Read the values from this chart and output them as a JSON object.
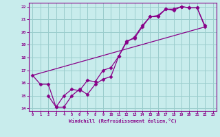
{
  "xlabel": "Windchill (Refroidissement éolien,°C)",
  "xlim": [
    -0.5,
    23.5
  ],
  "ylim": [
    13.8,
    22.3
  ],
  "xticks": [
    0,
    1,
    2,
    3,
    4,
    5,
    6,
    7,
    8,
    9,
    10,
    11,
    12,
    13,
    14,
    15,
    16,
    17,
    18,
    19,
    20,
    21,
    22,
    23
  ],
  "yticks": [
    14,
    15,
    16,
    17,
    18,
    19,
    20,
    21,
    22
  ],
  "bg_color": "#c8ecec",
  "plot_bg": "#c8ecec",
  "line_color": "#880088",
  "grid_color": "#99cccc",
  "spine_color": "#880088",
  "line1_x": [
    0,
    1,
    2,
    3,
    4,
    5,
    6,
    7,
    8,
    9,
    10,
    11,
    12,
    13,
    14,
    15,
    16,
    17,
    18,
    19,
    20,
    21,
    22
  ],
  "line1_y": [
    16.6,
    15.9,
    15.9,
    14.1,
    14.1,
    15.0,
    15.5,
    15.1,
    15.9,
    16.3,
    16.5,
    18.1,
    19.3,
    19.5,
    20.4,
    21.2,
    21.3,
    21.8,
    21.8,
    22.0,
    21.9,
    21.9,
    20.5
  ],
  "line2_x": [
    2,
    3,
    4,
    5,
    6,
    7,
    8,
    9,
    10,
    11,
    12,
    13,
    14,
    15,
    16,
    17,
    18,
    19,
    20,
    21,
    22
  ],
  "line2_y": [
    15.0,
    14.1,
    15.0,
    15.5,
    15.4,
    16.2,
    16.1,
    17.0,
    17.2,
    18.1,
    19.2,
    19.6,
    20.5,
    21.2,
    21.2,
    21.8,
    21.7,
    22.0,
    21.9,
    21.9,
    20.4
  ],
  "line3_x": [
    0,
    22
  ],
  "line3_y": [
    16.6,
    20.4
  ]
}
